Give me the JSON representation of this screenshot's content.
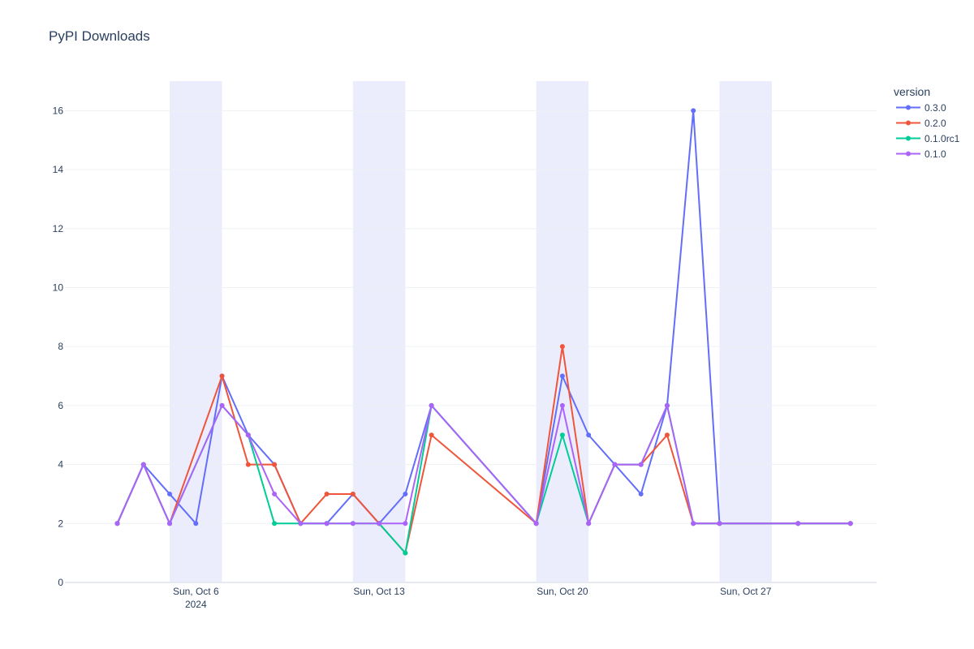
{
  "chart_data": {
    "type": "line",
    "title": "PyPI Downloads",
    "xlabel": "",
    "ylabel": "",
    "ylim": [
      0,
      17
    ],
    "y_ticks": [
      0,
      2,
      4,
      6,
      8,
      10,
      12,
      14,
      16
    ],
    "x_range": [
      "2024-10-01",
      "2024-11-01"
    ],
    "x_ticks": [
      {
        "date": "2024-10-06",
        "label": "Sun, Oct 6",
        "sublabel": "2024"
      },
      {
        "date": "2024-10-13",
        "label": "Sun, Oct 13",
        "sublabel": ""
      },
      {
        "date": "2024-10-20",
        "label": "Sun, Oct 20",
        "sublabel": ""
      },
      {
        "date": "2024-10-27",
        "label": "Sun, Oct 27",
        "sublabel": ""
      }
    ],
    "weekend_bands": [
      [
        "2024-10-05",
        "2024-10-07"
      ],
      [
        "2024-10-12",
        "2024-10-14"
      ],
      [
        "2024-10-19",
        "2024-10-21"
      ],
      [
        "2024-10-26",
        "2024-10-28"
      ]
    ],
    "grid": true,
    "legend_title": "version",
    "legend_position": "top-right",
    "series": [
      {
        "name": "0.3.0",
        "color": "#636efa",
        "points": [
          [
            "2024-10-03",
            2
          ],
          [
            "2024-10-04",
            4
          ],
          [
            "2024-10-05",
            3
          ],
          [
            "2024-10-06",
            2
          ],
          [
            "2024-10-07",
            7
          ],
          [
            "2024-10-08",
            5
          ],
          [
            "2024-10-09",
            4
          ],
          [
            "2024-10-10",
            2
          ],
          [
            "2024-10-11",
            2
          ],
          [
            "2024-10-12",
            3
          ],
          [
            "2024-10-13",
            2
          ],
          [
            "2024-10-14",
            3
          ],
          [
            "2024-10-15",
            6
          ],
          [
            "2024-10-19",
            2
          ],
          [
            "2024-10-20",
            7
          ],
          [
            "2024-10-21",
            5
          ],
          [
            "2024-10-22",
            4
          ],
          [
            "2024-10-23",
            3
          ],
          [
            "2024-10-24",
            6
          ],
          [
            "2024-10-25",
            16
          ],
          [
            "2024-10-26",
            2
          ],
          [
            "2024-10-29",
            2
          ],
          [
            "2024-10-31",
            2
          ]
        ]
      },
      {
        "name": "0.2.0",
        "color": "#ef553b",
        "points": [
          [
            "2024-10-03",
            2
          ],
          [
            "2024-10-04",
            4
          ],
          [
            "2024-10-05",
            2
          ],
          [
            "2024-10-07",
            7
          ],
          [
            "2024-10-08",
            4
          ],
          [
            "2024-10-09",
            4
          ],
          [
            "2024-10-10",
            2
          ],
          [
            "2024-10-11",
            3
          ],
          [
            "2024-10-12",
            3
          ],
          [
            "2024-10-13",
            2
          ],
          [
            "2024-10-14",
            1
          ],
          [
            "2024-10-15",
            5
          ],
          [
            "2024-10-19",
            2
          ],
          [
            "2024-10-20",
            8
          ],
          [
            "2024-10-21",
            2
          ],
          [
            "2024-10-22",
            4
          ],
          [
            "2024-10-23",
            4
          ],
          [
            "2024-10-24",
            5
          ],
          [
            "2024-10-25",
            2
          ],
          [
            "2024-10-26",
            2
          ],
          [
            "2024-10-29",
            2
          ],
          [
            "2024-10-31",
            2
          ]
        ]
      },
      {
        "name": "0.1.0rc1",
        "color": "#00cc96",
        "points": [
          [
            "2024-10-03",
            2
          ],
          [
            "2024-10-04",
            4
          ],
          [
            "2024-10-05",
            2
          ],
          [
            "2024-10-07",
            6
          ],
          [
            "2024-10-08",
            5
          ],
          [
            "2024-10-09",
            2
          ],
          [
            "2024-10-10",
            2
          ],
          [
            "2024-10-11",
            2
          ],
          [
            "2024-10-12",
            2
          ],
          [
            "2024-10-13",
            2
          ],
          [
            "2024-10-14",
            1
          ],
          [
            "2024-10-15",
            6
          ],
          [
            "2024-10-19",
            2
          ],
          [
            "2024-10-20",
            5
          ],
          [
            "2024-10-21",
            2
          ],
          [
            "2024-10-22",
            4
          ],
          [
            "2024-10-23",
            4
          ],
          [
            "2024-10-24",
            6
          ],
          [
            "2024-10-25",
            2
          ],
          [
            "2024-10-26",
            2
          ],
          [
            "2024-10-29",
            2
          ],
          [
            "2024-10-31",
            2
          ]
        ]
      },
      {
        "name": "0.1.0",
        "color": "#ab63fa",
        "points": [
          [
            "2024-10-03",
            2
          ],
          [
            "2024-10-04",
            4
          ],
          [
            "2024-10-05",
            2
          ],
          [
            "2024-10-07",
            6
          ],
          [
            "2024-10-08",
            5
          ],
          [
            "2024-10-09",
            3
          ],
          [
            "2024-10-10",
            2
          ],
          [
            "2024-10-11",
            2
          ],
          [
            "2024-10-12",
            2
          ],
          [
            "2024-10-13",
            2
          ],
          [
            "2024-10-14",
            2
          ],
          [
            "2024-10-15",
            6
          ],
          [
            "2024-10-19",
            2
          ],
          [
            "2024-10-20",
            6
          ],
          [
            "2024-10-21",
            2
          ],
          [
            "2024-10-22",
            4
          ],
          [
            "2024-10-23",
            4
          ],
          [
            "2024-10-24",
            6
          ],
          [
            "2024-10-25",
            2
          ],
          [
            "2024-10-26",
            2
          ],
          [
            "2024-10-29",
            2
          ],
          [
            "2024-10-31",
            2
          ]
        ]
      }
    ]
  }
}
